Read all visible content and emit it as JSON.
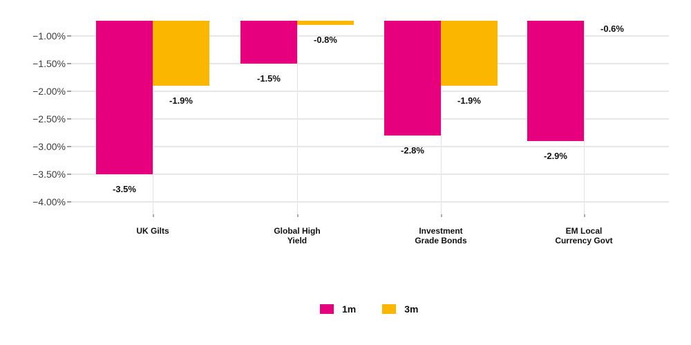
{
  "chart_data": {
    "type": "bar",
    "title": "",
    "xlabel": "",
    "ylabel": "",
    "categories": [
      "UK Gilts",
      "Global High\nYield",
      "Investment\nGrade Bonds",
      "EM Local\nCurrency Govt"
    ],
    "series": [
      {
        "name": "1m",
        "color": "#E6007E",
        "values": [
          -3.5,
          -1.5,
          -2.8,
          -2.9
        ],
        "data_labels": [
          "-3.5%",
          "-1.5%",
          "-2.8%",
          "-2.9%"
        ]
      },
      {
        "name": "3m",
        "color": "#FBB600",
        "values": [
          -1.9,
          -0.8,
          -1.9,
          -0.6
        ],
        "data_labels": [
          "-1.9%",
          "-0.8%",
          "-1.9%",
          "-0.6%"
        ]
      }
    ],
    "y_ticks": [
      {
        "value": -1.0,
        "label": "−1.00%"
      },
      {
        "value": -1.5,
        "label": "−1.50%"
      },
      {
        "value": -2.0,
        "label": "−2.00%"
      },
      {
        "value": -2.5,
        "label": "−2.50%"
      },
      {
        "value": -3.0,
        "label": "−3.00%"
      },
      {
        "value": -3.5,
        "label": "−3.50%"
      },
      {
        "value": -4.0,
        "label": "−4.00%"
      }
    ],
    "y_axis_top_value": -0.72,
    "y_axis_bottom_tick": -4.0,
    "grid": true,
    "legend_position": "bottom",
    "legend": [
      {
        "label": "1m",
        "color": "#E6007E"
      },
      {
        "label": "3m",
        "color": "#FBB600"
      }
    ]
  },
  "colors": {
    "series_1m": "#E6007E",
    "series_3m": "#FBB600",
    "gridline": "#E7E7E7",
    "vertical_gridline": "#E3E3E3",
    "axis_tick": "#9E9E9E",
    "axis_label": "#3D3D3D",
    "data_label": "#111111",
    "background": "#FFFFFF"
  }
}
